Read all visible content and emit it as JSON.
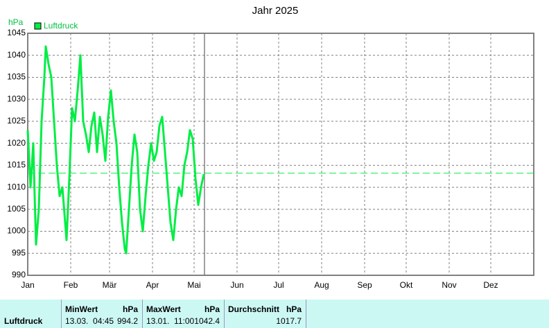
{
  "chart_data": {
    "type": "line",
    "title": "Jahr 2025",
    "y_label": "hPa",
    "x": [
      0,
      2,
      4,
      5,
      6,
      8,
      10,
      12,
      13,
      15,
      17,
      19,
      21,
      23,
      25,
      27,
      28,
      30,
      32,
      34,
      36,
      38,
      40,
      42,
      44,
      46,
      48,
      50,
      52,
      54,
      56,
      58,
      60,
      62,
      64,
      66,
      68,
      70,
      71,
      73,
      75,
      77,
      79,
      81,
      83,
      85,
      87,
      89,
      91,
      93,
      95,
      97,
      99,
      101,
      103,
      105,
      107,
      109,
      111,
      113,
      115,
      117,
      119,
      121,
      123,
      125,
      127
    ],
    "series": [
      {
        "name": "Luftdruck",
        "color": "#00ee44",
        "values": [
          1023,
          1010,
          1020,
          1008,
          997,
          1005,
          1025,
          1035,
          1042,
          1038,
          1035,
          1025,
          1015,
          1008,
          1010,
          1002,
          998,
          1012,
          1028,
          1025,
          1032,
          1040,
          1025,
          1022,
          1018,
          1024,
          1027,
          1018,
          1026,
          1022,
          1016,
          1026,
          1032,
          1025,
          1020,
          1010,
          1002,
          996,
          995,
          1005,
          1015,
          1022,
          1018,
          1005,
          1000,
          1008,
          1015,
          1020,
          1016,
          1018,
          1024,
          1026,
          1018,
          1010,
          1002,
          998,
          1005,
          1010,
          1008,
          1015,
          1018,
          1023,
          1021,
          1012,
          1006,
          1010,
          1013
        ]
      }
    ],
    "xlim": [
      0,
      365
    ],
    "xticks": [
      {
        "value": 0,
        "label": "Jan"
      },
      {
        "value": 31,
        "label": "Feb"
      },
      {
        "value": 59,
        "label": "Mär"
      },
      {
        "value": 90,
        "label": "Apr"
      },
      {
        "value": 120,
        "label": "Mai"
      },
      {
        "value": 151,
        "label": "Jun"
      },
      {
        "value": 181,
        "label": "Jul"
      },
      {
        "value": 212,
        "label": "Aug"
      },
      {
        "value": 243,
        "label": "Sep"
      },
      {
        "value": 273,
        "label": "Okt"
      },
      {
        "value": 304,
        "label": "Nov"
      },
      {
        "value": 334,
        "label": "Dez"
      }
    ],
    "ylim": [
      990,
      1045
    ],
    "yticks": [
      990,
      995,
      1000,
      1005,
      1010,
      1015,
      1020,
      1025,
      1030,
      1035,
      1040,
      1045
    ],
    "grid": true,
    "reference_line": 1013.2,
    "current_marker": 127.5
  },
  "table": {
    "row_label": "Luftdruck",
    "columns": [
      {
        "header": "MinWert",
        "unit": "hPa",
        "time": "13.03.  04:45",
        "value": 994.2
      },
      {
        "header": "MaxWert",
        "unit": "hPa",
        "time": "13.01.  11:00",
        "value": 1042.4
      },
      {
        "header": "Durchschnitt",
        "unit": "hPa",
        "value": 1017.7
      }
    ]
  }
}
